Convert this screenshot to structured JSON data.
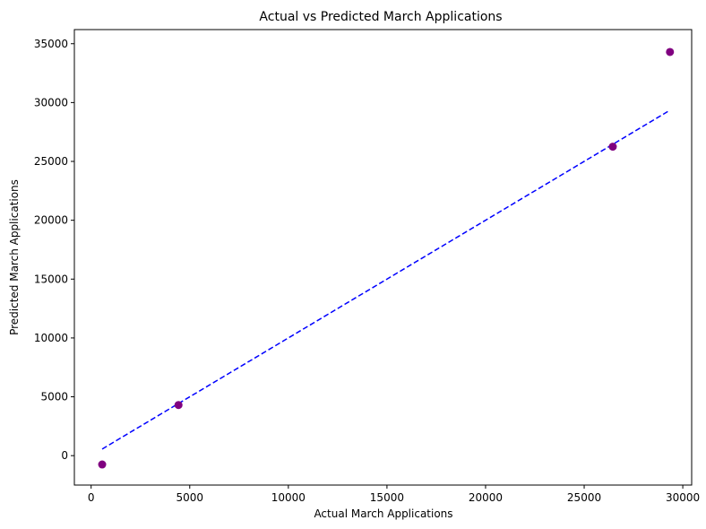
{
  "chart_data": {
    "type": "scatter",
    "title": "Actual vs Predicted March Applications",
    "xlabel": "Actual March Applications",
    "ylabel": "Predicted March Applications",
    "xlim": [
      -850,
      30450
    ],
    "ylim": [
      -2500,
      36200
    ],
    "xticks": [
      0,
      5000,
      10000,
      15000,
      20000,
      25000,
      30000
    ],
    "yticks": [
      0,
      5000,
      10000,
      15000,
      20000,
      25000,
      30000,
      35000
    ],
    "grid": false,
    "legend": "none",
    "points": [
      {
        "x": 560,
        "y": -750
      },
      {
        "x": 4430,
        "y": 4300
      },
      {
        "x": 26450,
        "y": 26250
      },
      {
        "x": 29350,
        "y": 34300
      }
    ],
    "reference_line": {
      "x": [
        560,
        29350
      ],
      "y": [
        560,
        29350
      ],
      "style": "dashed"
    },
    "colors": {
      "points": "#800080",
      "reference_line": "#0000ff",
      "axes": "#000000"
    }
  }
}
